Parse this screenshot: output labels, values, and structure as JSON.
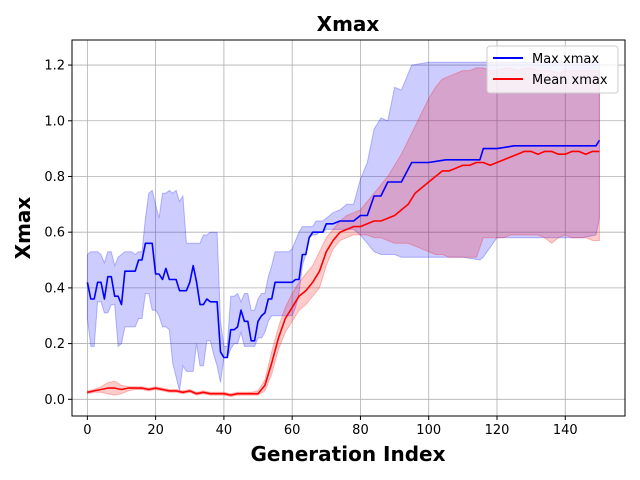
{
  "chart_data": {
    "type": "line",
    "title": "Xmax",
    "xlabel": "Generation Index",
    "ylabel": "Xmax",
    "xlim": [
      -4.5,
      157.5
    ],
    "ylim": [
      -0.06,
      1.29
    ],
    "xticks": [
      0,
      20,
      40,
      60,
      80,
      100,
      120,
      140
    ],
    "yticks": [
      0.0,
      0.2,
      0.4,
      0.6,
      0.8,
      1.0,
      1.2
    ],
    "grid": true,
    "legend_position": "top-right",
    "legend": [
      "Max xmax",
      "Mean xmax"
    ],
    "series": [
      {
        "name": "Max xmax",
        "color": "#0000ff",
        "band_color": "#0000ff",
        "x": [
          0,
          1,
          2,
          3,
          4,
          5,
          6,
          7,
          8,
          9,
          10,
          11,
          12,
          13,
          14,
          15,
          16,
          17,
          18,
          19,
          20,
          21,
          22,
          23,
          24,
          25,
          26,
          27,
          28,
          29,
          30,
          31,
          32,
          33,
          34,
          35,
          36,
          37,
          38,
          39,
          40,
          41,
          42,
          43,
          44,
          45,
          46,
          47,
          48,
          49,
          50,
          51,
          52,
          53,
          54,
          55,
          56,
          57,
          58,
          59,
          60,
          61,
          62,
          63,
          64,
          65,
          66,
          67,
          68,
          69,
          70,
          72,
          74,
          76,
          78,
          80,
          82,
          84,
          86,
          88,
          90,
          92,
          95,
          100,
          105,
          110,
          115,
          116,
          120,
          125,
          130,
          135,
          140,
          145,
          149,
          150
        ],
        "y": [
          0.42,
          0.36,
          0.36,
          0.42,
          0.42,
          0.36,
          0.44,
          0.44,
          0.37,
          0.37,
          0.34,
          0.46,
          0.46,
          0.46,
          0.46,
          0.5,
          0.5,
          0.56,
          0.56,
          0.56,
          0.45,
          0.45,
          0.43,
          0.47,
          0.43,
          0.43,
          0.43,
          0.39,
          0.39,
          0.39,
          0.42,
          0.48,
          0.42,
          0.34,
          0.34,
          0.36,
          0.35,
          0.35,
          0.35,
          0.17,
          0.15,
          0.15,
          0.25,
          0.25,
          0.26,
          0.32,
          0.28,
          0.28,
          0.21,
          0.21,
          0.28,
          0.3,
          0.31,
          0.36,
          0.36,
          0.42,
          0.42,
          0.42,
          0.42,
          0.42,
          0.42,
          0.43,
          0.43,
          0.52,
          0.52,
          0.58,
          0.6,
          0.6,
          0.6,
          0.6,
          0.63,
          0.63,
          0.64,
          0.64,
          0.64,
          0.66,
          0.66,
          0.73,
          0.73,
          0.78,
          0.78,
          0.78,
          0.85,
          0.85,
          0.86,
          0.86,
          0.86,
          0.9,
          0.9,
          0.91,
          0.91,
          0.91,
          0.91,
          0.91,
          0.91,
          0.93
        ],
        "upper": [
          0.52,
          0.53,
          0.53,
          0.53,
          0.52,
          0.49,
          0.53,
          0.53,
          0.48,
          0.51,
          0.52,
          0.53,
          0.53,
          0.53,
          0.52,
          0.53,
          0.53,
          0.65,
          0.74,
          0.75,
          0.7,
          0.65,
          0.74,
          0.74,
          0.75,
          0.74,
          0.75,
          0.71,
          0.73,
          0.56,
          0.56,
          0.56,
          0.56,
          0.56,
          0.59,
          0.59,
          0.6,
          0.6,
          0.6,
          0.28,
          0.19,
          0.19,
          0.37,
          0.37,
          0.38,
          0.35,
          0.38,
          0.38,
          0.32,
          0.32,
          0.36,
          0.38,
          0.38,
          0.44,
          0.48,
          0.53,
          0.53,
          0.53,
          0.53,
          0.53,
          0.54,
          0.57,
          0.6,
          0.62,
          0.62,
          0.62,
          0.62,
          0.64,
          0.64,
          0.64,
          0.65,
          0.67,
          0.68,
          0.7,
          0.7,
          0.79,
          0.85,
          0.97,
          1.01,
          1.0,
          1.12,
          1.11,
          1.2,
          1.21,
          1.21,
          1.21,
          1.21,
          1.21,
          1.21,
          1.21,
          1.21,
          1.21,
          1.21,
          1.21,
          1.21,
          1.21
        ],
        "lower": [
          0.29,
          0.19,
          0.19,
          0.35,
          0.35,
          0.31,
          0.31,
          0.34,
          0.34,
          0.19,
          0.2,
          0.26,
          0.26,
          0.26,
          0.26,
          0.29,
          0.29,
          0.38,
          0.38,
          0.32,
          0.32,
          0.3,
          0.26,
          0.26,
          0.25,
          0.13,
          0.08,
          0.03,
          0.12,
          0.1,
          0.1,
          0.1,
          0.2,
          0.12,
          0.12,
          0.21,
          0.21,
          0.16,
          0.12,
          0.06,
          0.15,
          0.15,
          0.18,
          0.2,
          0.2,
          0.24,
          0.19,
          0.19,
          0.19,
          0.19,
          0.22,
          0.22,
          0.24,
          0.28,
          0.3,
          0.3,
          0.3,
          0.3,
          0.3,
          0.3,
          0.3,
          0.33,
          0.38,
          0.48,
          0.52,
          0.58,
          0.59,
          0.59,
          0.6,
          0.6,
          0.61,
          0.61,
          0.61,
          0.61,
          0.61,
          0.59,
          0.56,
          0.53,
          0.52,
          0.52,
          0.52,
          0.51,
          0.51,
          0.51,
          0.51,
          0.51,
          0.5,
          0.51,
          0.58,
          0.58,
          0.58,
          0.58,
          0.58,
          0.58,
          0.59,
          0.65
        ]
      },
      {
        "name": "Mean xmax",
        "color": "#ff0000",
        "band_color": "#ff0000",
        "x": [
          0,
          2,
          4,
          6,
          8,
          10,
          12,
          14,
          16,
          18,
          20,
          22,
          24,
          26,
          28,
          30,
          32,
          34,
          36,
          38,
          40,
          42,
          44,
          46,
          48,
          50,
          52,
          54,
          56,
          58,
          60,
          62,
          64,
          66,
          68,
          70,
          72,
          74,
          76,
          78,
          80,
          82,
          84,
          86,
          88,
          90,
          92,
          94,
          96,
          98,
          100,
          102,
          104,
          106,
          108,
          110,
          112,
          114,
          116,
          118,
          120,
          122,
          124,
          126,
          128,
          130,
          132,
          134,
          136,
          138,
          140,
          142,
          144,
          146,
          148,
          150
        ],
        "y": [
          0.025,
          0.03,
          0.035,
          0.04,
          0.04,
          0.035,
          0.04,
          0.04,
          0.04,
          0.035,
          0.04,
          0.035,
          0.03,
          0.03,
          0.025,
          0.03,
          0.02,
          0.025,
          0.02,
          0.02,
          0.02,
          0.015,
          0.02,
          0.02,
          0.02,
          0.02,
          0.05,
          0.13,
          0.22,
          0.29,
          0.33,
          0.37,
          0.39,
          0.42,
          0.46,
          0.53,
          0.57,
          0.6,
          0.61,
          0.62,
          0.62,
          0.63,
          0.64,
          0.64,
          0.65,
          0.66,
          0.68,
          0.7,
          0.74,
          0.76,
          0.78,
          0.8,
          0.82,
          0.82,
          0.83,
          0.84,
          0.84,
          0.85,
          0.85,
          0.84,
          0.85,
          0.86,
          0.87,
          0.88,
          0.89,
          0.89,
          0.88,
          0.89,
          0.89,
          0.88,
          0.88,
          0.89,
          0.89,
          0.88,
          0.89,
          0.89
        ],
        "upper": [
          0.03,
          0.035,
          0.045,
          0.06,
          0.065,
          0.05,
          0.045,
          0.045,
          0.045,
          0.04,
          0.045,
          0.04,
          0.035,
          0.035,
          0.03,
          0.035,
          0.025,
          0.03,
          0.025,
          0.025,
          0.025,
          0.02,
          0.025,
          0.025,
          0.025,
          0.03,
          0.07,
          0.17,
          0.26,
          0.33,
          0.38,
          0.42,
          0.45,
          0.48,
          0.53,
          0.58,
          0.61,
          0.64,
          0.66,
          0.67,
          0.68,
          0.71,
          0.74,
          0.77,
          0.8,
          0.84,
          0.88,
          0.93,
          0.98,
          1.03,
          1.08,
          1.12,
          1.15,
          1.16,
          1.17,
          1.18,
          1.18,
          1.19,
          1.19,
          1.18,
          1.18,
          1.19,
          1.19,
          1.18,
          1.19,
          1.19,
          1.18,
          1.18,
          1.18,
          1.17,
          1.18,
          1.18,
          1.18,
          1.18,
          1.18,
          1.18
        ],
        "lower": [
          0.02,
          0.025,
          0.025,
          0.02,
          0.015,
          0.02,
          0.03,
          0.035,
          0.035,
          0.03,
          0.035,
          0.03,
          0.025,
          0.025,
          0.02,
          0.025,
          0.015,
          0.02,
          0.015,
          0.015,
          0.015,
          0.01,
          0.015,
          0.015,
          0.015,
          0.015,
          0.03,
          0.09,
          0.18,
          0.24,
          0.28,
          0.32,
          0.34,
          0.37,
          0.4,
          0.48,
          0.54,
          0.57,
          0.58,
          0.59,
          0.59,
          0.59,
          0.58,
          0.58,
          0.57,
          0.56,
          0.56,
          0.56,
          0.55,
          0.54,
          0.53,
          0.52,
          0.52,
          0.51,
          0.51,
          0.51,
          0.51,
          0.51,
          0.58,
          0.58,
          0.58,
          0.58,
          0.59,
          0.59,
          0.59,
          0.59,
          0.59,
          0.58,
          0.56,
          0.58,
          0.59,
          0.58,
          0.58,
          0.58,
          0.57,
          0.57
        ]
      }
    ]
  }
}
